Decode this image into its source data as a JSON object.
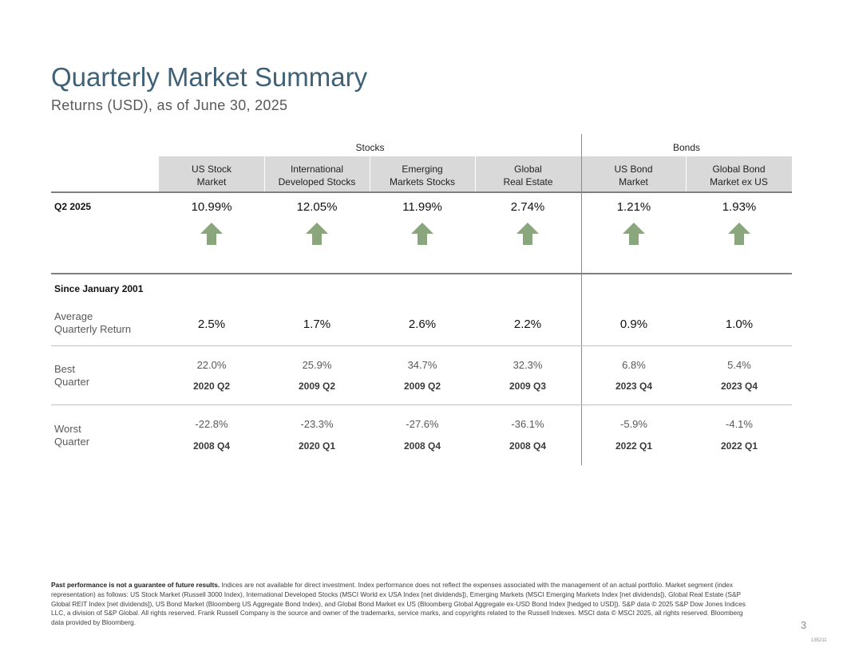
{
  "header": {
    "title": "Quarterly Market Summary",
    "subtitle": "Returns (USD), as of June 30, 2025"
  },
  "groups": {
    "stocks": "Stocks",
    "bonds": "Bonds"
  },
  "columns": [
    {
      "line1": "US Stock",
      "line2": "Market"
    },
    {
      "line1": "International",
      "line2": "Developed Stocks"
    },
    {
      "line1": "Emerging",
      "line2": "Markets Stocks"
    },
    {
      "line1": "Global",
      "line2": "Real Estate"
    },
    {
      "line1": "US Bond",
      "line2": "Market"
    },
    {
      "line1": "Global Bond",
      "line2": "Market ex US"
    }
  ],
  "quarter": {
    "label": "Q2 2025",
    "values": [
      "10.99%",
      "12.05%",
      "11.99%",
      "2.74%",
      "1.21%",
      "1.93%"
    ],
    "arrow_icon": "up-arrow-icon",
    "arrow_color": "#8aa67d"
  },
  "since": {
    "label": "Since January 2001",
    "average": {
      "label_line1": "Average",
      "label_line2": "Quarterly Return",
      "values": [
        "2.5%",
        "1.7%",
        "2.6%",
        "2.2%",
        "0.9%",
        "1.0%"
      ]
    },
    "best": {
      "label_line1": "Best",
      "label_line2": "Quarter",
      "values": [
        "22.0%",
        "25.9%",
        "34.7%",
        "32.3%",
        "6.8%",
        "5.4%"
      ],
      "quarters": [
        "2020 Q2",
        "2009 Q2",
        "2009 Q2",
        "2009 Q3",
        "2023 Q4",
        "2023 Q4"
      ]
    },
    "worst": {
      "label_line1": "Worst",
      "label_line2": "Quarter",
      "values": [
        "-22.8%",
        "-23.3%",
        "-27.6%",
        "-36.1%",
        "-5.9%",
        "-4.1%"
      ],
      "quarters": [
        "2008 Q4",
        "2020 Q1",
        "2008 Q4",
        "2008 Q4",
        "2022 Q1",
        "2022 Q1"
      ]
    }
  },
  "footnote": {
    "bold": "Past performance is not a guarantee of future results.",
    "text": " Indices are not available for direct investment. Index performance does not reflect the expenses associated with the management of an actual portfolio. Market segment (index representation) as follows: US Stock Market (Russell 3000 Index), International Developed Stocks (MSCI World ex USA Index [net dividends]), Emerging Markets (MSCI Emerging Markets Index [net dividends]), Global Real Estate (S&P Global REIT Index [net dividends]), US Bond Market (Bloomberg US Aggregate Bond Index), and Global Bond Market ex US (Bloomberg Global Aggregate ex-USD Bond Index [hedged to USD]). S&P data © 2025 S&P Dow Jones Indices LLC, a division of S&P Global. All rights reserved. Frank Russell Company is the source and owner of the trademarks, service marks, and copyrights related to the Russell Indexes. MSCI data © MSCI 2025, all rights reserved. Bloomberg data provided by Bloomberg."
  },
  "page_number": "3",
  "doc_code": "135211"
}
